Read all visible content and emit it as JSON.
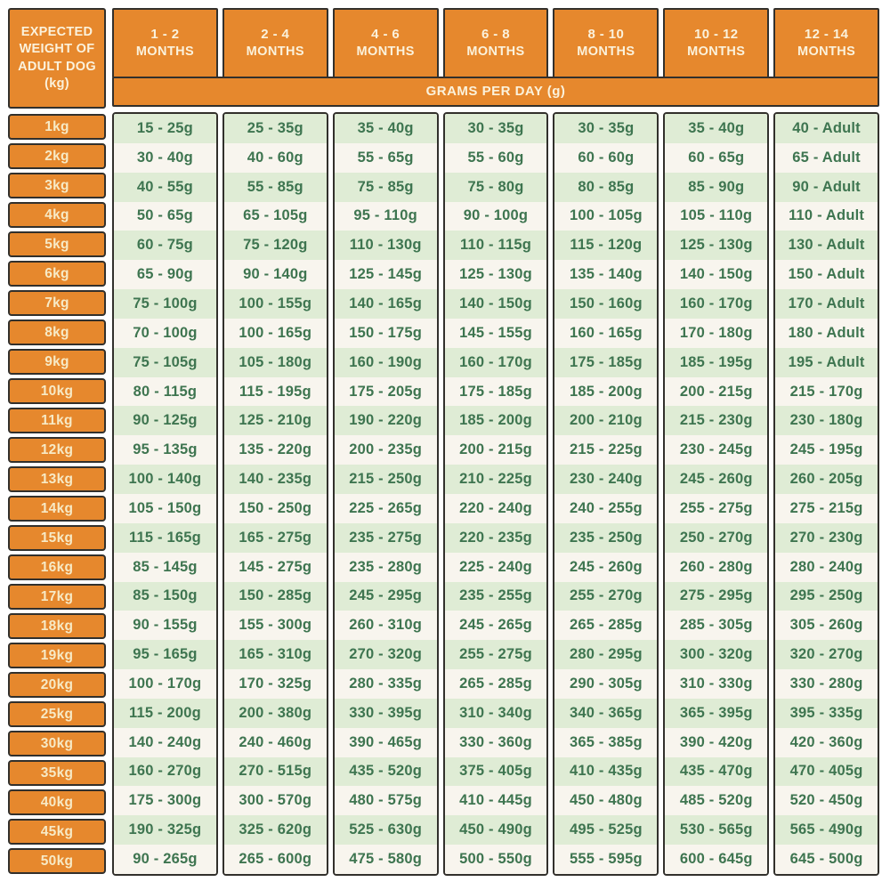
{
  "colors": {
    "orange": "#E6882D",
    "border": "#32302C",
    "row_green": "#DFECD5",
    "row_cream": "#F8F5EE",
    "text_green": "#3E7550",
    "header_text": "#FBF2DC",
    "kg_text": "#F7EAC6",
    "page_bg": "#FFFFFF"
  },
  "chart_data": {
    "type": "table",
    "corner_header": "EXPECTED WEIGHT OF ADULT DOG (kg)",
    "units_banner": "GRAMS PER DAY (g)",
    "column_headers": [
      {
        "range": "1 - 2",
        "unit": "MONTHS"
      },
      {
        "range": "2 - 4",
        "unit": "MONTHS"
      },
      {
        "range": "4 - 6",
        "unit": "MONTHS"
      },
      {
        "range": "6 - 8",
        "unit": "MONTHS"
      },
      {
        "range": "8 - 10",
        "unit": "MONTHS"
      },
      {
        "range": "10 - 12",
        "unit": "MONTHS"
      },
      {
        "range": "12 - 14",
        "unit": "MONTHS"
      }
    ],
    "rows": [
      {
        "weight": "1kg",
        "values": [
          "15 - 25g",
          "25 - 35g",
          "35 - 40g",
          "30 - 35g",
          "30 - 35g",
          "35 - 40g",
          "40 - Adult"
        ]
      },
      {
        "weight": "2kg",
        "values": [
          "30 - 40g",
          "40 - 60g",
          "55 - 65g",
          "55 - 60g",
          "60 - 60g",
          "60 - 65g",
          "65 - Adult"
        ]
      },
      {
        "weight": "3kg",
        "values": [
          "40 - 55g",
          "55 - 85g",
          "75 - 85g",
          "75 - 80g",
          "80 - 85g",
          "85 - 90g",
          "90 - Adult"
        ]
      },
      {
        "weight": "4kg",
        "values": [
          "50 - 65g",
          "65 - 105g",
          "95 - 110g",
          "90 - 100g",
          "100 - 105g",
          "105 - 110g",
          "110 - Adult"
        ]
      },
      {
        "weight": "5kg",
        "values": [
          "60 - 75g",
          "75 - 120g",
          "110 - 130g",
          "110 - 115g",
          "115 - 120g",
          "125 - 130g",
          "130 - Adult"
        ]
      },
      {
        "weight": "6kg",
        "values": [
          "65 - 90g",
          "90 - 140g",
          "125 - 145g",
          "125 - 130g",
          "135 - 140g",
          "140 - 150g",
          "150 - Adult"
        ]
      },
      {
        "weight": "7kg",
        "values": [
          "75 - 100g",
          "100 - 155g",
          "140 - 165g",
          "140 - 150g",
          "150 - 160g",
          "160 - 170g",
          "170 - Adult"
        ]
      },
      {
        "weight": "8kg",
        "values": [
          "70 - 100g",
          "100 - 165g",
          "150 - 175g",
          "145 - 155g",
          "160 - 165g",
          "170 - 180g",
          "180 - Adult"
        ]
      },
      {
        "weight": "9kg",
        "values": [
          "75 - 105g",
          "105 - 180g",
          "160 - 190g",
          "160 - 170g",
          "175 - 185g",
          "185 - 195g",
          "195 - Adult"
        ]
      },
      {
        "weight": "10kg",
        "values": [
          "80 - 115g",
          "115 - 195g",
          "175 - 205g",
          "175 - 185g",
          "185 - 200g",
          "200 - 215g",
          "215 - 170g"
        ]
      },
      {
        "weight": "11kg",
        "values": [
          "90 - 125g",
          "125 - 210g",
          "190 - 220g",
          "185 - 200g",
          "200 - 210g",
          "215 - 230g",
          "230 - 180g"
        ]
      },
      {
        "weight": "12kg",
        "values": [
          "95 - 135g",
          "135 - 220g",
          "200 - 235g",
          "200 - 215g",
          "215 - 225g",
          "230 - 245g",
          "245 - 195g"
        ]
      },
      {
        "weight": "13kg",
        "values": [
          "100 - 140g",
          "140 - 235g",
          "215 - 250g",
          "210 - 225g",
          "230 - 240g",
          "245 - 260g",
          "260 - 205g"
        ]
      },
      {
        "weight": "14kg",
        "values": [
          "105 - 150g",
          "150 - 250g",
          "225 - 265g",
          "220 - 240g",
          "240 - 255g",
          "255 - 275g",
          "275 - 215g"
        ]
      },
      {
        "weight": "15kg",
        "values": [
          "115 - 165g",
          "165 - 275g",
          "235 - 275g",
          "220 - 235g",
          "235 - 250g",
          "250 - 270g",
          "270 - 230g"
        ]
      },
      {
        "weight": "16kg",
        "values": [
          "85 - 145g",
          "145 - 275g",
          "235 - 280g",
          "225 - 240g",
          "245 - 260g",
          "260 - 280g",
          "280 - 240g"
        ]
      },
      {
        "weight": "17kg",
        "values": [
          "85 - 150g",
          "150 - 285g",
          "245 - 295g",
          "235 - 255g",
          "255 - 270g",
          "275 - 295g",
          "295 - 250g"
        ]
      },
      {
        "weight": "18kg",
        "values": [
          "90 - 155g",
          "155 - 300g",
          "260 - 310g",
          "245 - 265g",
          "265 - 285g",
          "285 - 305g",
          "305 - 260g"
        ]
      },
      {
        "weight": "19kg",
        "values": [
          "95 - 165g",
          "165 - 310g",
          "270 - 320g",
          "255 - 275g",
          "280 - 295g",
          "300 - 320g",
          "320 - 270g"
        ]
      },
      {
        "weight": "20kg",
        "values": [
          "100 - 170g",
          "170 - 325g",
          "280 - 335g",
          "265 - 285g",
          "290 - 305g",
          "310 - 330g",
          "330 - 280g"
        ]
      },
      {
        "weight": "25kg",
        "values": [
          "115 - 200g",
          "200 - 380g",
          "330 - 395g",
          "310 - 340g",
          "340 - 365g",
          "365 - 395g",
          "395 - 335g"
        ]
      },
      {
        "weight": "30kg",
        "values": [
          "140 - 240g",
          "240 - 460g",
          "390 - 465g",
          "330 - 360g",
          "365 - 385g",
          "390 - 420g",
          "420 - 360g"
        ]
      },
      {
        "weight": "35kg",
        "values": [
          "160 - 270g",
          "270 - 515g",
          "435 - 520g",
          "375 - 405g",
          "410 - 435g",
          "435 - 470g",
          "470 - 405g"
        ]
      },
      {
        "weight": "40kg",
        "values": [
          "175 - 300g",
          "300 - 570g",
          "480 - 575g",
          "410 - 445g",
          "450 - 480g",
          "485 - 520g",
          "520 - 450g"
        ]
      },
      {
        "weight": "45kg",
        "values": [
          "190 - 325g",
          "325 - 620g",
          "525 - 630g",
          "450 - 490g",
          "495 - 525g",
          "530 - 565g",
          "565 - 490g"
        ]
      },
      {
        "weight": "50kg",
        "values": [
          "90 - 265g",
          "265 - 600g",
          "475 - 580g",
          "500 - 550g",
          "555 - 595g",
          "600 - 645g",
          "645 - 500g"
        ]
      }
    ]
  }
}
